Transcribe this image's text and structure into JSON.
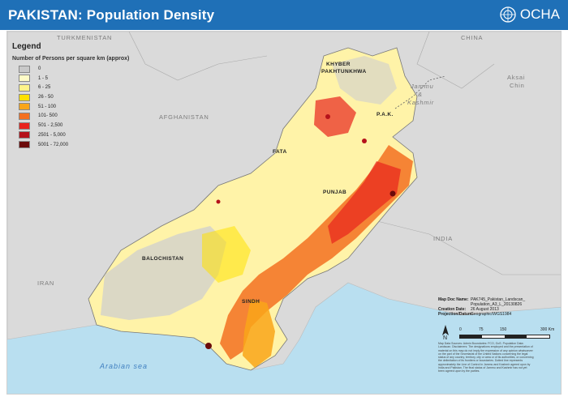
{
  "header": {
    "title": "PAKISTAN: Population Density",
    "org": "OCHA",
    "color": "#1f70b7"
  },
  "legend": {
    "title": "Legend",
    "subtitle": "Number of Persons per square km (approx)",
    "items": [
      {
        "label": "0",
        "color": "#c9c9c9"
      },
      {
        "label": "1 - 5",
        "color": "#fffbc7"
      },
      {
        "label": "6 - 25",
        "color": "#fff38a"
      },
      {
        "label": "26 - 50",
        "color": "#ffe100"
      },
      {
        "label": "51 - 100",
        "color": "#f9a519"
      },
      {
        "label": "101- 500",
        "color": "#f37021"
      },
      {
        "label": "501 - 2,500",
        "color": "#e8231d"
      },
      {
        "label": "2501 - 5,000",
        "color": "#b5121b"
      },
      {
        "label": "5001 - 72,000",
        "color": "#6b0a0a"
      }
    ]
  },
  "labels": {
    "turkmenistan": "TURKMENISTAN",
    "china": "CHINA",
    "afghanistan": "AFGHANISTAN",
    "india": "INDIA",
    "iran": "IRAN",
    "aksai1": "Aksai",
    "aksai2": "Chin",
    "jammu1": "Jammu",
    "jammu2": "&",
    "jammu3": "Kashmir",
    "kp1": "KHYBER",
    "kp2": "PAKHTUNKHWA",
    "pak": "P.A.K.",
    "fata": "FATA",
    "punjab": "PUNJAB",
    "balochistan": "BALOCHISTAN",
    "sindh": "SINDH",
    "sea": "Arabian sea"
  },
  "meta": {
    "doc_key": "Map Doc Name:",
    "doc_val1": "PAK745_Pakistan_Landscan_",
    "doc_val2": "Population_A3_L_20130826",
    "date_key": "Creation Date:",
    "date_val": "26 August 2013",
    "proj_key": "Projection/Datum:",
    "proj_val": "Geographic/WGS1984"
  },
  "scale": {
    "t0": "0",
    "t1": "75",
    "t2": "150",
    "t3": "300 Km"
  },
  "north": "N",
  "disclaimer": "Map Data Sources: Admin Boundaries: FCO, GoS. Population Data: Landscan. Disclaimers: The designations employed and the presentation of material on this map do not imply the expression of any opinion whatsoever on the part of the Secretariat of the United Nations concerning the legal status of any country, territory, city or area or of its authorities, or concerning the delimitation of its frontiers or boundaries. Dotted line represents approximately the Line of Control in Jammu and Kashmir agreed upon by India and Pakistan. The final status of Jammu and Kashmir has not yet been agreed upon by the parties.",
  "colors": {
    "sea": "#b9dff0",
    "neighbor": "#dadada",
    "pakistan_base": "#fff3a8"
  }
}
